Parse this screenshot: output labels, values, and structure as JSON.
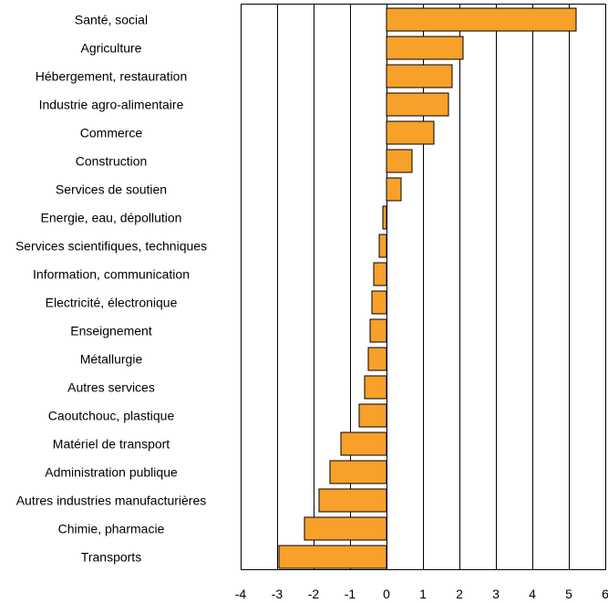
{
  "chart_data": {
    "type": "bar",
    "orientation": "horizontal",
    "categories": [
      "Santé, social",
      "Agriculture",
      "Hébergement, restauration",
      "Industrie agro-alimentaire",
      "Commerce",
      "Construction",
      "Services de soutien",
      "Energie, eau, dépollution",
      "Services scientifiques, techniques",
      "Information, communication",
      "Electricité, électronique",
      "Enseignement",
      "Métallurgie",
      "Autres services",
      "Caoutchouc, plastique",
      "Matériel de transport",
      "Administration publique",
      "Autres industries manufacturières",
      "Chimie, pharmacie",
      "Transports"
    ],
    "values": [
      5.2,
      2.1,
      1.8,
      1.7,
      1.3,
      0.7,
      0.4,
      -0.1,
      -0.2,
      -0.35,
      -0.4,
      -0.45,
      -0.5,
      -0.6,
      -0.75,
      -1.25,
      -1.55,
      -1.85,
      -2.25,
      -2.95
    ],
    "xlim": [
      -4,
      6
    ],
    "xticks": [
      "-4",
      "-3",
      "-2",
      "-1",
      "0",
      "1",
      "2",
      "3",
      "4",
      "5",
      "6"
    ],
    "grid": "vertical",
    "colors": {
      "bar": "#F7A02A",
      "bar_edge": "#000000",
      "grid": "#000000"
    }
  }
}
